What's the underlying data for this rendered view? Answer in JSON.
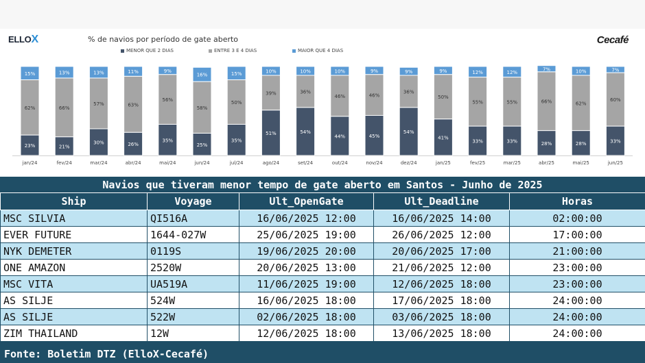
{
  "brand": {
    "left_logo_text": "ELLO",
    "left_logo_mark": "X",
    "right_logo_text": "Cecafé"
  },
  "chart_data": {
    "type": "bar",
    "stacked": true,
    "title": "% de navios por período de gate aberto",
    "categories": [
      "jan/24",
      "fev/24",
      "mar/24",
      "abr/24",
      "mai/24",
      "jun/24",
      "jul/24",
      "ago/24",
      "set/24",
      "out/24",
      "nov/24",
      "dez/24",
      "jan/25",
      "fev/25",
      "mar/25",
      "abr/25",
      "mai/25",
      "jun/25"
    ],
    "series": [
      {
        "name": "MENOR QUE 2 DIAS",
        "color": "#44546a",
        "values": [
          23,
          21,
          30,
          26,
          35,
          25,
          35,
          51,
          54,
          44,
          45,
          54,
          41,
          33,
          33,
          28,
          28,
          33
        ]
      },
      {
        "name": "ENTRE 3 E 4 DIAS",
        "color": "#a5a5a5",
        "values": [
          62,
          66,
          57,
          63,
          56,
          58,
          50,
          39,
          36,
          46,
          46,
          36,
          50,
          55,
          55,
          66,
          62,
          60
        ]
      },
      {
        "name": "MAIOR QUE 4 DIAS",
        "color": "#5b9bd5",
        "values": [
          15,
          13,
          13,
          11,
          9,
          16,
          15,
          10,
          10,
          10,
          9,
          9,
          9,
          12,
          12,
          7,
          10,
          7
        ]
      }
    ],
    "value_suffix": "%",
    "ylim": [
      0,
      100
    ],
    "legend_position": "top"
  },
  "table": {
    "title": "Navios que tiveram menor tempo de gate aberto em Santos - Junho de 2025",
    "columns": [
      "Ship",
      "Voyage",
      "Ult_OpenGate",
      "Ult_Deadline",
      "Horas"
    ],
    "rows": [
      [
        "MSC SILVIA",
        "QI516A",
        "16/06/2025 12:00",
        "16/06/2025 14:00",
        "02:00:00"
      ],
      [
        "EVER FUTURE",
        "1644-027W",
        "25/06/2025 19:00",
        "26/06/2025 12:00",
        "17:00:00"
      ],
      [
        "NYK DEMETER",
        "0119S",
        "19/06/2025 20:00",
        "20/06/2025 17:00",
        "21:00:00"
      ],
      [
        "ONE AMAZON",
        "2520W",
        "20/06/2025 13:00",
        "21/06/2025 12:00",
        "23:00:00"
      ],
      [
        "MSC VITA",
        "UA519A",
        "11/06/2025 19:00",
        "12/06/2025 18:00",
        "23:00:00"
      ],
      [
        "AS SILJE",
        "524W",
        "16/06/2025 18:00",
        "17/06/2025 18:00",
        "24:00:00"
      ],
      [
        "AS SILJE",
        "522W",
        "02/06/2025 18:00",
        "03/06/2025 18:00",
        "24:00:00"
      ],
      [
        "ZIM THAILAND",
        "12W",
        "12/06/2025 18:00",
        "13/06/2025 18:00",
        "24:00:00"
      ]
    ]
  },
  "footer": "Fonte: Boletim DTZ (ElloX-Cecafé)"
}
